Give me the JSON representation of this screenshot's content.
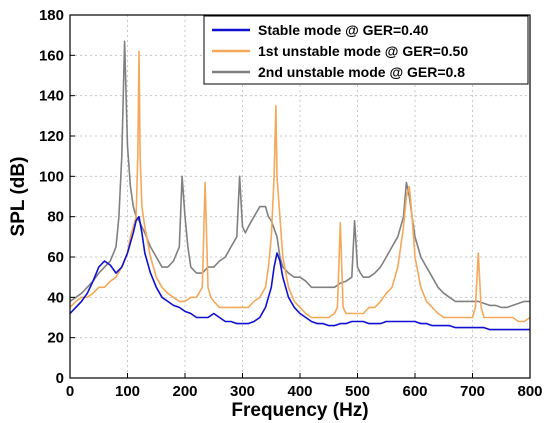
{
  "chart_data": {
    "type": "line",
    "title": "",
    "xlabel": "Frequency (Hz)",
    "ylabel": "SPL (dB)",
    "xlim": [
      0,
      800
    ],
    "ylim": [
      0,
      180
    ],
    "xticks": [
      "0",
      "100",
      "200",
      "300",
      "400",
      "500",
      "600",
      "700",
      "800"
    ],
    "yticks": [
      "0",
      "20",
      "40",
      "60",
      "80",
      "100",
      "120",
      "140",
      "160",
      "180"
    ],
    "grid": true,
    "legend_position": "top-right",
    "series": [
      {
        "name": "2nd unstable mode @ GER=0.8",
        "color": "#808080",
        "x": [
          0,
          10,
          20,
          30,
          40,
          50,
          60,
          70,
          80,
          85,
          90,
          95,
          100,
          105,
          110,
          115,
          120,
          130,
          140,
          150,
          160,
          170,
          180,
          190,
          195,
          200,
          205,
          210,
          220,
          230,
          240,
          250,
          260,
          270,
          280,
          290,
          295,
          300,
          305,
          310,
          320,
          330,
          340,
          345,
          350,
          360,
          365,
          370,
          380,
          390,
          400,
          410,
          420,
          430,
          440,
          450,
          460,
          470,
          480,
          490,
          495,
          500,
          505,
          510,
          520,
          530,
          540,
          550,
          560,
          570,
          580,
          585,
          590,
          595,
          600,
          610,
          620,
          630,
          640,
          650,
          660,
          670,
          680,
          690,
          700,
          710,
          720,
          730,
          740,
          750,
          760,
          770,
          780,
          790,
          800
        ],
        "values": [
          38,
          40,
          42,
          45,
          48,
          52,
          55,
          58,
          65,
          80,
          110,
          167,
          115,
          95,
          85,
          80,
          78,
          72,
          65,
          60,
          55,
          55,
          58,
          65,
          100,
          80,
          65,
          55,
          52,
          52,
          55,
          55,
          58,
          60,
          65,
          70,
          100,
          75,
          72,
          75,
          80,
          85,
          85,
          80,
          78,
          70,
          60,
          55,
          52,
          50,
          50,
          48,
          45,
          45,
          45,
          45,
          45,
          47,
          48,
          50,
          78,
          55,
          52,
          50,
          50,
          52,
          55,
          60,
          65,
          70,
          80,
          97,
          90,
          80,
          70,
          60,
          55,
          50,
          45,
          42,
          40,
          38,
          38,
          38,
          38,
          38,
          37,
          36,
          36,
          35,
          35,
          36,
          37,
          38,
          38
        ]
      },
      {
        "name": "1st unstable mode @ GER=0.50",
        "color": "#f5a85a",
        "x": [
          0,
          10,
          20,
          30,
          40,
          50,
          60,
          70,
          80,
          90,
          100,
          105,
          110,
          115,
          118,
          120,
          122,
          125,
          130,
          140,
          150,
          160,
          170,
          180,
          190,
          200,
          210,
          220,
          230,
          235,
          240,
          245,
          250,
          260,
          270,
          280,
          290,
          300,
          310,
          320,
          330,
          340,
          345,
          350,
          355,
          358,
          360,
          365,
          370,
          380,
          390,
          400,
          410,
          420,
          430,
          440,
          450,
          460,
          465,
          470,
          475,
          480,
          490,
          500,
          510,
          520,
          530,
          540,
          550,
          560,
          570,
          580,
          585,
          590,
          595,
          600,
          610,
          620,
          630,
          640,
          650,
          660,
          670,
          680,
          690,
          700,
          705,
          710,
          715,
          720,
          730,
          740,
          750,
          760,
          770,
          780,
          790,
          800
        ],
        "values": [
          35,
          38,
          40,
          40,
          42,
          45,
          45,
          48,
          50,
          55,
          62,
          70,
          75,
          80,
          110,
          162,
          110,
          85,
          75,
          60,
          50,
          45,
          42,
          40,
          38,
          38,
          40,
          40,
          45,
          97,
          45,
          40,
          38,
          35,
          35,
          35,
          35,
          35,
          35,
          38,
          40,
          45,
          55,
          70,
          100,
          135,
          100,
          80,
          60,
          45,
          38,
          35,
          32,
          30,
          30,
          30,
          30,
          32,
          35,
          77,
          35,
          32,
          32,
          32,
          32,
          35,
          35,
          38,
          42,
          45,
          55,
          75,
          90,
          95,
          80,
          60,
          45,
          38,
          35,
          32,
          30,
          30,
          30,
          30,
          30,
          30,
          35,
          62,
          35,
          30,
          30,
          30,
          30,
          30,
          30,
          28,
          28,
          30
        ]
      },
      {
        "name": "Stable mode @ GER=0.40",
        "color": "#1010d0",
        "x": [
          0,
          10,
          20,
          30,
          40,
          50,
          60,
          70,
          80,
          90,
          100,
          110,
          115,
          120,
          125,
          130,
          140,
          150,
          160,
          170,
          180,
          190,
          200,
          210,
          220,
          230,
          240,
          250,
          260,
          270,
          280,
          290,
          300,
          310,
          320,
          330,
          340,
          350,
          355,
          360,
          365,
          370,
          380,
          390,
          400,
          410,
          420,
          430,
          440,
          450,
          460,
          470,
          480,
          490,
          500,
          510,
          520,
          530,
          540,
          550,
          560,
          570,
          580,
          590,
          600,
          610,
          620,
          630,
          640,
          650,
          660,
          670,
          680,
          690,
          700,
          710,
          720,
          730,
          740,
          750,
          760,
          770,
          780,
          790,
          800
        ],
        "values": [
          32,
          35,
          38,
          42,
          48,
          55,
          58,
          56,
          52,
          55,
          62,
          72,
          78,
          80,
          72,
          62,
          52,
          45,
          40,
          38,
          36,
          35,
          33,
          32,
          30,
          30,
          30,
          32,
          30,
          28,
          28,
          27,
          27,
          27,
          28,
          30,
          35,
          45,
          55,
          62,
          58,
          50,
          40,
          35,
          32,
          30,
          28,
          27,
          27,
          26,
          26,
          27,
          27,
          28,
          28,
          28,
          27,
          27,
          27,
          28,
          28,
          28,
          28,
          28,
          28,
          27,
          27,
          26,
          26,
          26,
          26,
          25,
          25,
          25,
          25,
          25,
          25,
          24,
          24,
          24,
          24,
          24,
          24,
          24,
          24
        ]
      }
    ],
    "legend_order": [
      "Stable mode @ GER=0.40",
      "1st unstable mode @ GER=0.50",
      "2nd unstable mode @ GER=0.8"
    ]
  }
}
